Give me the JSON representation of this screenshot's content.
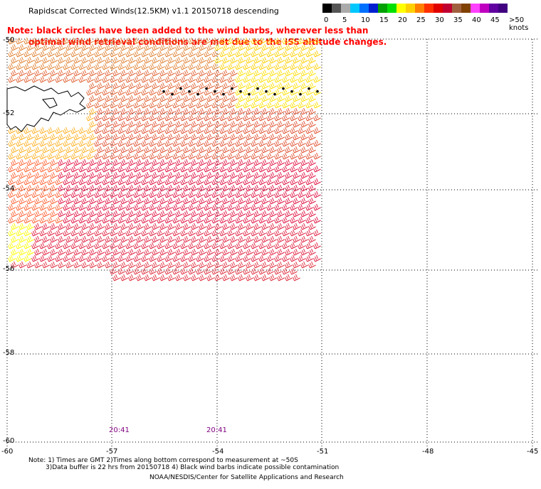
{
  "title": "Rapidscat Corrected Winds(12.5KM) v1.1 20150718 descending",
  "note_line1": "Note: black circles have been added to the wind barbs, wherever less than",
  "note_line2": "optimal wind retrieval conditions are met due to the ISS altitude changes.",
  "legend": {
    "colors": [
      "#000000",
      "#555555",
      "#aaaaaa",
      "#00c8ff",
      "#0070ff",
      "#0020d0",
      "#00a000",
      "#00e000",
      "#ffff00",
      "#ffd000",
      "#ff8000",
      "#ff3000",
      "#e00000",
      "#c00030",
      "#a06040",
      "#804000",
      "#ff40ff",
      "#c000c0",
      "#6000a0",
      "#400080"
    ],
    "labels": [
      "0",
      "5",
      "10",
      "15",
      "20",
      "25",
      "30",
      "35",
      "40",
      "45",
      ">50 knots"
    ]
  },
  "axes": {
    "lat_labels": [
      "-50",
      "-52",
      "-54",
      "-56",
      "-58",
      "-60"
    ],
    "lon_labels": [
      "-60",
      "-57",
      "-54",
      "-51",
      "-48",
      "-45"
    ]
  },
  "times": [
    "20:41",
    "20:41"
  ],
  "footer_line1": "Note: 1) Times are GMT 2)Times along bottom correspond to measurement at ~50S",
  "footer_line2": "3)Data buffer is 22 hrs from 20150718 4) Black wind barbs indicate possible contamination",
  "credit": "NOAA/NESDIS/Center for Satellite Applications and Research"
}
